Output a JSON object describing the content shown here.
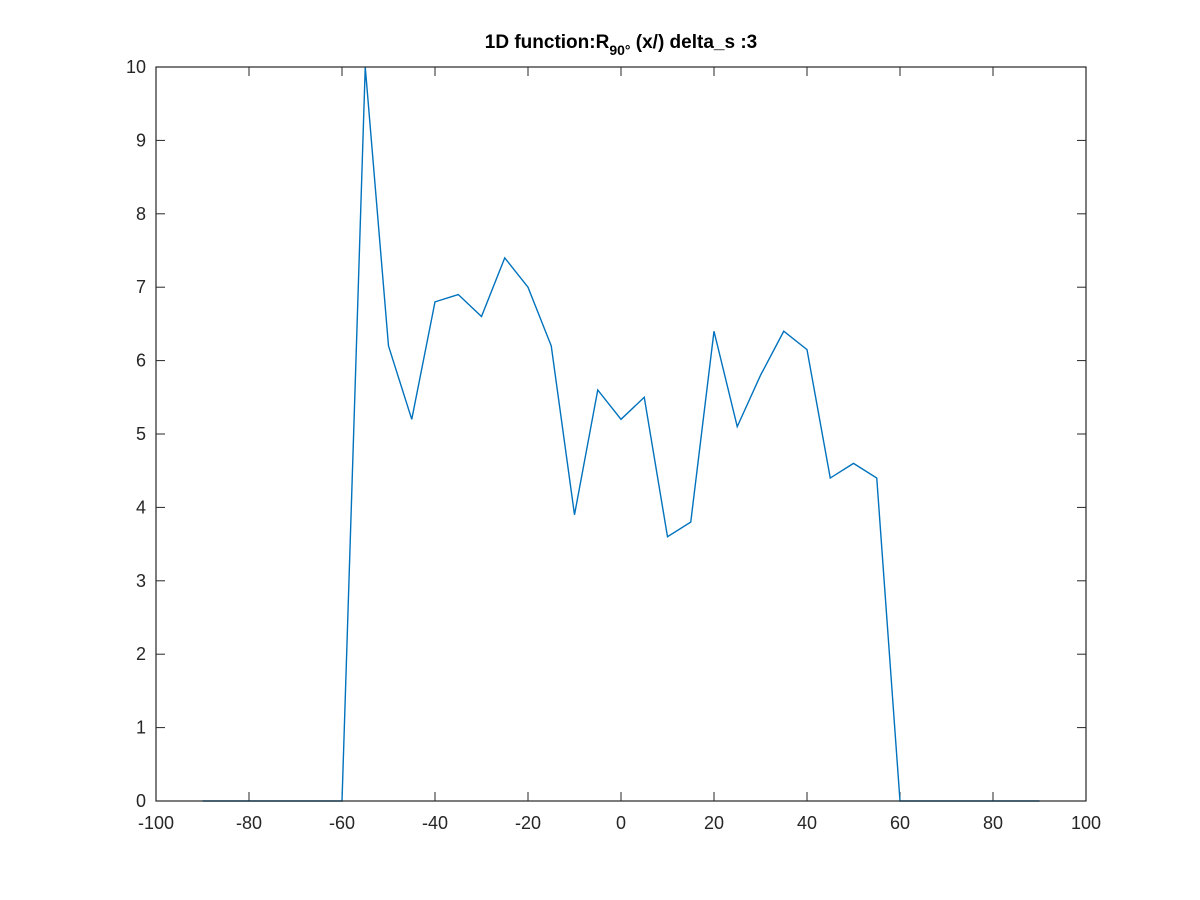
{
  "chart_data": {
    "type": "line",
    "title": {
      "prefix": "1D function:R",
      "subscript": "90°",
      "suffix": " (x/) delta_s :3"
    },
    "xlabel": "",
    "ylabel": "",
    "xlim": [
      -100,
      100
    ],
    "ylim": [
      0,
      10
    ],
    "x_ticks": [
      -100,
      -80,
      -60,
      -40,
      -20,
      0,
      20,
      40,
      60,
      80,
      100
    ],
    "x_tick_labels": [
      "-100",
      "-80",
      "-60",
      "-40",
      "-20",
      "0",
      "20",
      "40",
      "60",
      "80",
      "100"
    ],
    "y_ticks": [
      0,
      1,
      2,
      3,
      4,
      5,
      6,
      7,
      8,
      9,
      10
    ],
    "y_tick_labels": [
      "0",
      "1",
      "2",
      "3",
      "4",
      "5",
      "6",
      "7",
      "8",
      "9",
      "10"
    ],
    "grid": false,
    "box": true,
    "line_color": "#0072BD",
    "series": [
      {
        "x": [
          -90,
          -85,
          -80,
          -75,
          -70,
          -65,
          -60,
          -55,
          -50,
          -45,
          -40,
          -35,
          -30,
          -25,
          -20,
          -15,
          -10,
          -5,
          0,
          5,
          10,
          15,
          20,
          25,
          30,
          35,
          40,
          45,
          50,
          55,
          60,
          65,
          70,
          75,
          80,
          85,
          90
        ],
        "y": [
          0,
          0,
          0,
          0,
          0,
          0,
          0,
          10,
          6.2,
          5.2,
          6.8,
          6.9,
          6.6,
          7.4,
          7.0,
          6.2,
          3.9,
          5.6,
          5.2,
          5.5,
          3.6,
          3.8,
          6.4,
          5.1,
          5.8,
          6.4,
          6.15,
          4.4,
          4.6,
          4.4,
          0,
          0,
          0,
          0,
          0,
          0,
          0
        ]
      }
    ]
  }
}
